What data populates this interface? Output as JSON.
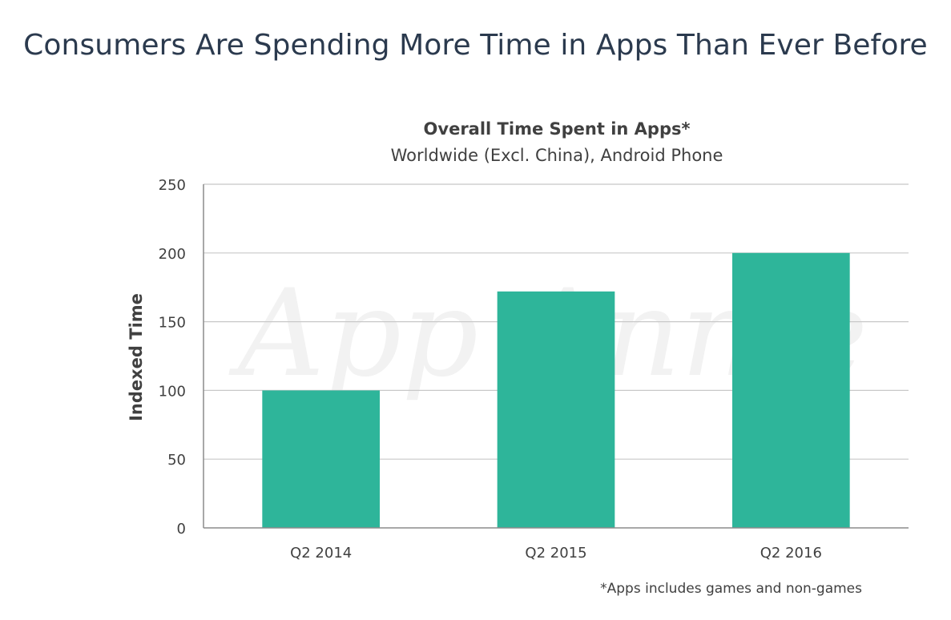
{
  "page": {
    "title": "Consumers Are Spending More Time in Apps Than Ever Before",
    "footnote": "*Apps includes games and non-games",
    "watermark": "App Annie"
  },
  "chart_data": {
    "type": "bar",
    "title": "Overall Time Spent in Apps*",
    "subtitle": "Worldwide (Excl. China), Android Phone",
    "categories": [
      "Q2 2014",
      "Q2 2015",
      "Q2 2016"
    ],
    "values": [
      100,
      172,
      200
    ],
    "xlabel": "",
    "ylabel": "Indexed Time",
    "ylim": [
      0,
      250
    ],
    "yticks": [
      0,
      50,
      100,
      150,
      200,
      250
    ],
    "grid": true,
    "legend": "none",
    "colors": {
      "bar": "#2eb59a",
      "grid": "#c8c8c8",
      "axis": "#8c8c8c"
    }
  }
}
